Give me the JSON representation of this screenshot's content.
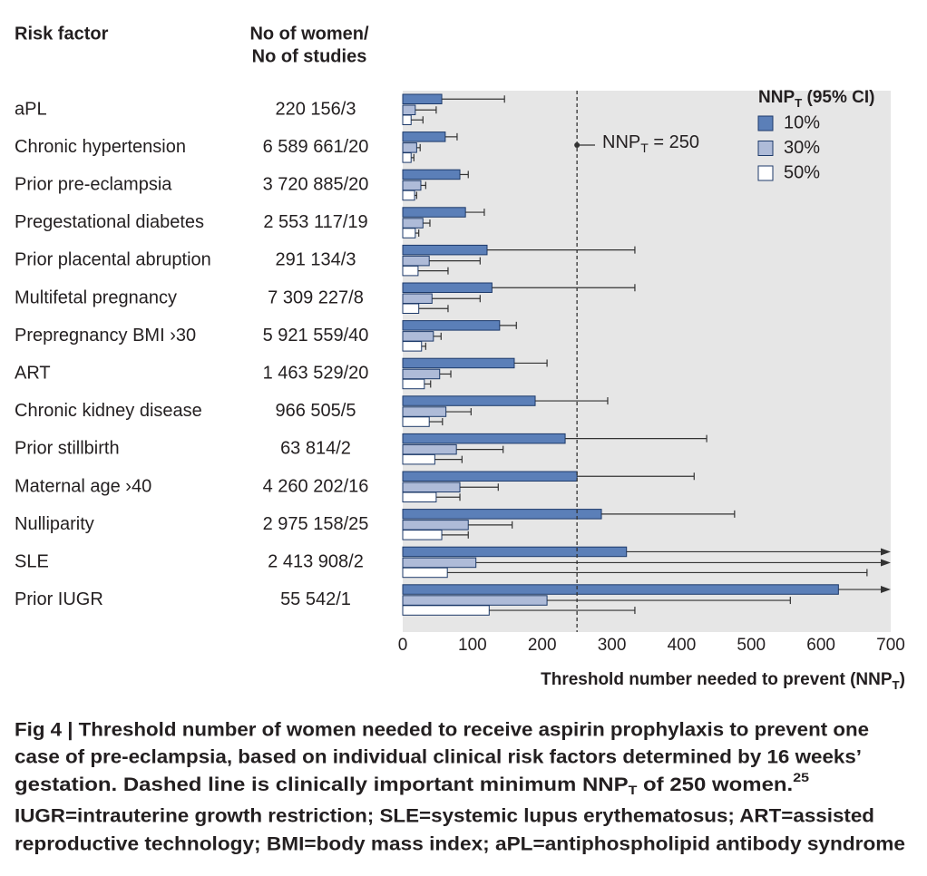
{
  "chart_data": {
    "type": "bar",
    "column_headers": {
      "risk_factor": "Risk factor",
      "counts": [
        "No of women/",
        "No of studies"
      ]
    },
    "categories": [
      "aPL",
      "Chronic hypertension",
      "Prior pre-eclampsia",
      "Pregestational diabetes",
      "Prior placental abruption",
      "Multifetal pregnancy",
      "Prepregnancy BMI ›30",
      "ART",
      "Chronic kidney disease",
      "Prior stillbirth",
      "Maternal age ›40",
      "Nulliparity",
      "SLE",
      "Prior IUGR"
    ],
    "counts": [
      "220 156/3",
      "6 589 661/20",
      "3 720 885/20",
      "2 553 117/19",
      "291 134/3",
      "7 309 227/8",
      "5 921 559/40",
      "1 463 529/20",
      "966 505/5",
      "63 814/2",
      "4 260 202/16",
      "2 975 158/25",
      "2 413 908/2",
      "55 542/1"
    ],
    "series": [
      {
        "name": "10%",
        "color": "#5b7fb8",
        "values": [
          56,
          61,
          82,
          90,
          121,
          128,
          139,
          160,
          190,
          233,
          250,
          285,
          321,
          625
        ],
        "ci_upper": [
          146,
          78,
          94,
          117,
          333,
          333,
          163,
          207,
          294,
          436,
          418,
          476,
          null,
          null
        ]
      },
      {
        "name": "30%",
        "color": "#aebbd8",
        "values": [
          18,
          20,
          26,
          29,
          38,
          42,
          44,
          53,
          62,
          77,
          82,
          94,
          105,
          207
        ],
        "ci_upper": [
          48,
          25,
          33,
          39,
          111,
          111,
          55,
          69,
          98,
          144,
          137,
          157,
          null,
          556
        ]
      },
      {
        "name": "50%",
        "color": "#ffffff",
        "values": [
          12,
          12,
          17,
          18,
          22,
          23,
          27,
          31,
          38,
          46,
          48,
          56,
          64,
          124
        ],
        "ci_upper": [
          29,
          16,
          20,
          23,
          65,
          65,
          33,
          40,
          57,
          85,
          82,
          94,
          666,
          333
        ]
      }
    ],
    "legend_title": {
      "main": "NNP",
      "sub": "T",
      "rest": " (95% CI)"
    },
    "reference_line": 250,
    "reference_label": {
      "main": "NNP",
      "sub": "T",
      "rest": " = 250"
    },
    "xlim": [
      0,
      700
    ],
    "xticks": [
      0,
      100,
      200,
      300,
      400,
      500,
      600,
      700
    ],
    "x_label": {
      "main": "Threshold number needed to prevent (NNP",
      "sub": "T",
      "rest": ")"
    },
    "background": "#e6e6e6"
  },
  "caption": {
    "lines": [
      "Fig 4 | Threshold number of women needed to receive aspirin prophylaxis to prevent one",
      "case of pre-eclampsia, based on individual clinical risk factors determined by 16 weeks’",
      {
        "before": "gestation. Dashed line is clinically important minimum NNP",
        "sub": "T",
        "after": " of 250 women.",
        "sup": "25"
      },
      "IUGR=intrauterine growth restriction; SLE=systemic lupus erythematosus; ART=assisted",
      "reproductive technology; BMI=body mass index; aPL=antiphospholipid antibody syndrome"
    ]
  }
}
